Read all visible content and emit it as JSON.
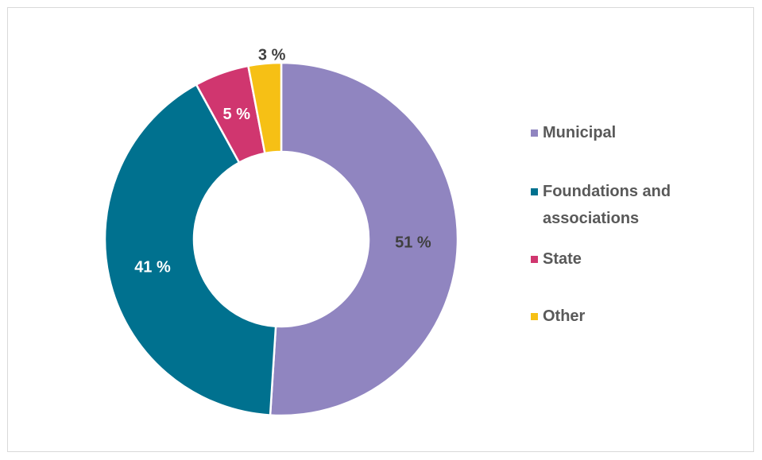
{
  "chart_data": {
    "type": "pie",
    "categories": [
      "Municipal",
      "Foundations and associations",
      "State",
      "Other"
    ],
    "values": [
      51,
      41,
      5,
      3
    ],
    "value_labels": [
      "51 %",
      "41 %",
      "5 %",
      "3 %"
    ],
    "colors": [
      "#9085c0",
      "#00718f",
      "#d0366f",
      "#f6c015"
    ],
    "hole": true,
    "legend": "right"
  }
}
